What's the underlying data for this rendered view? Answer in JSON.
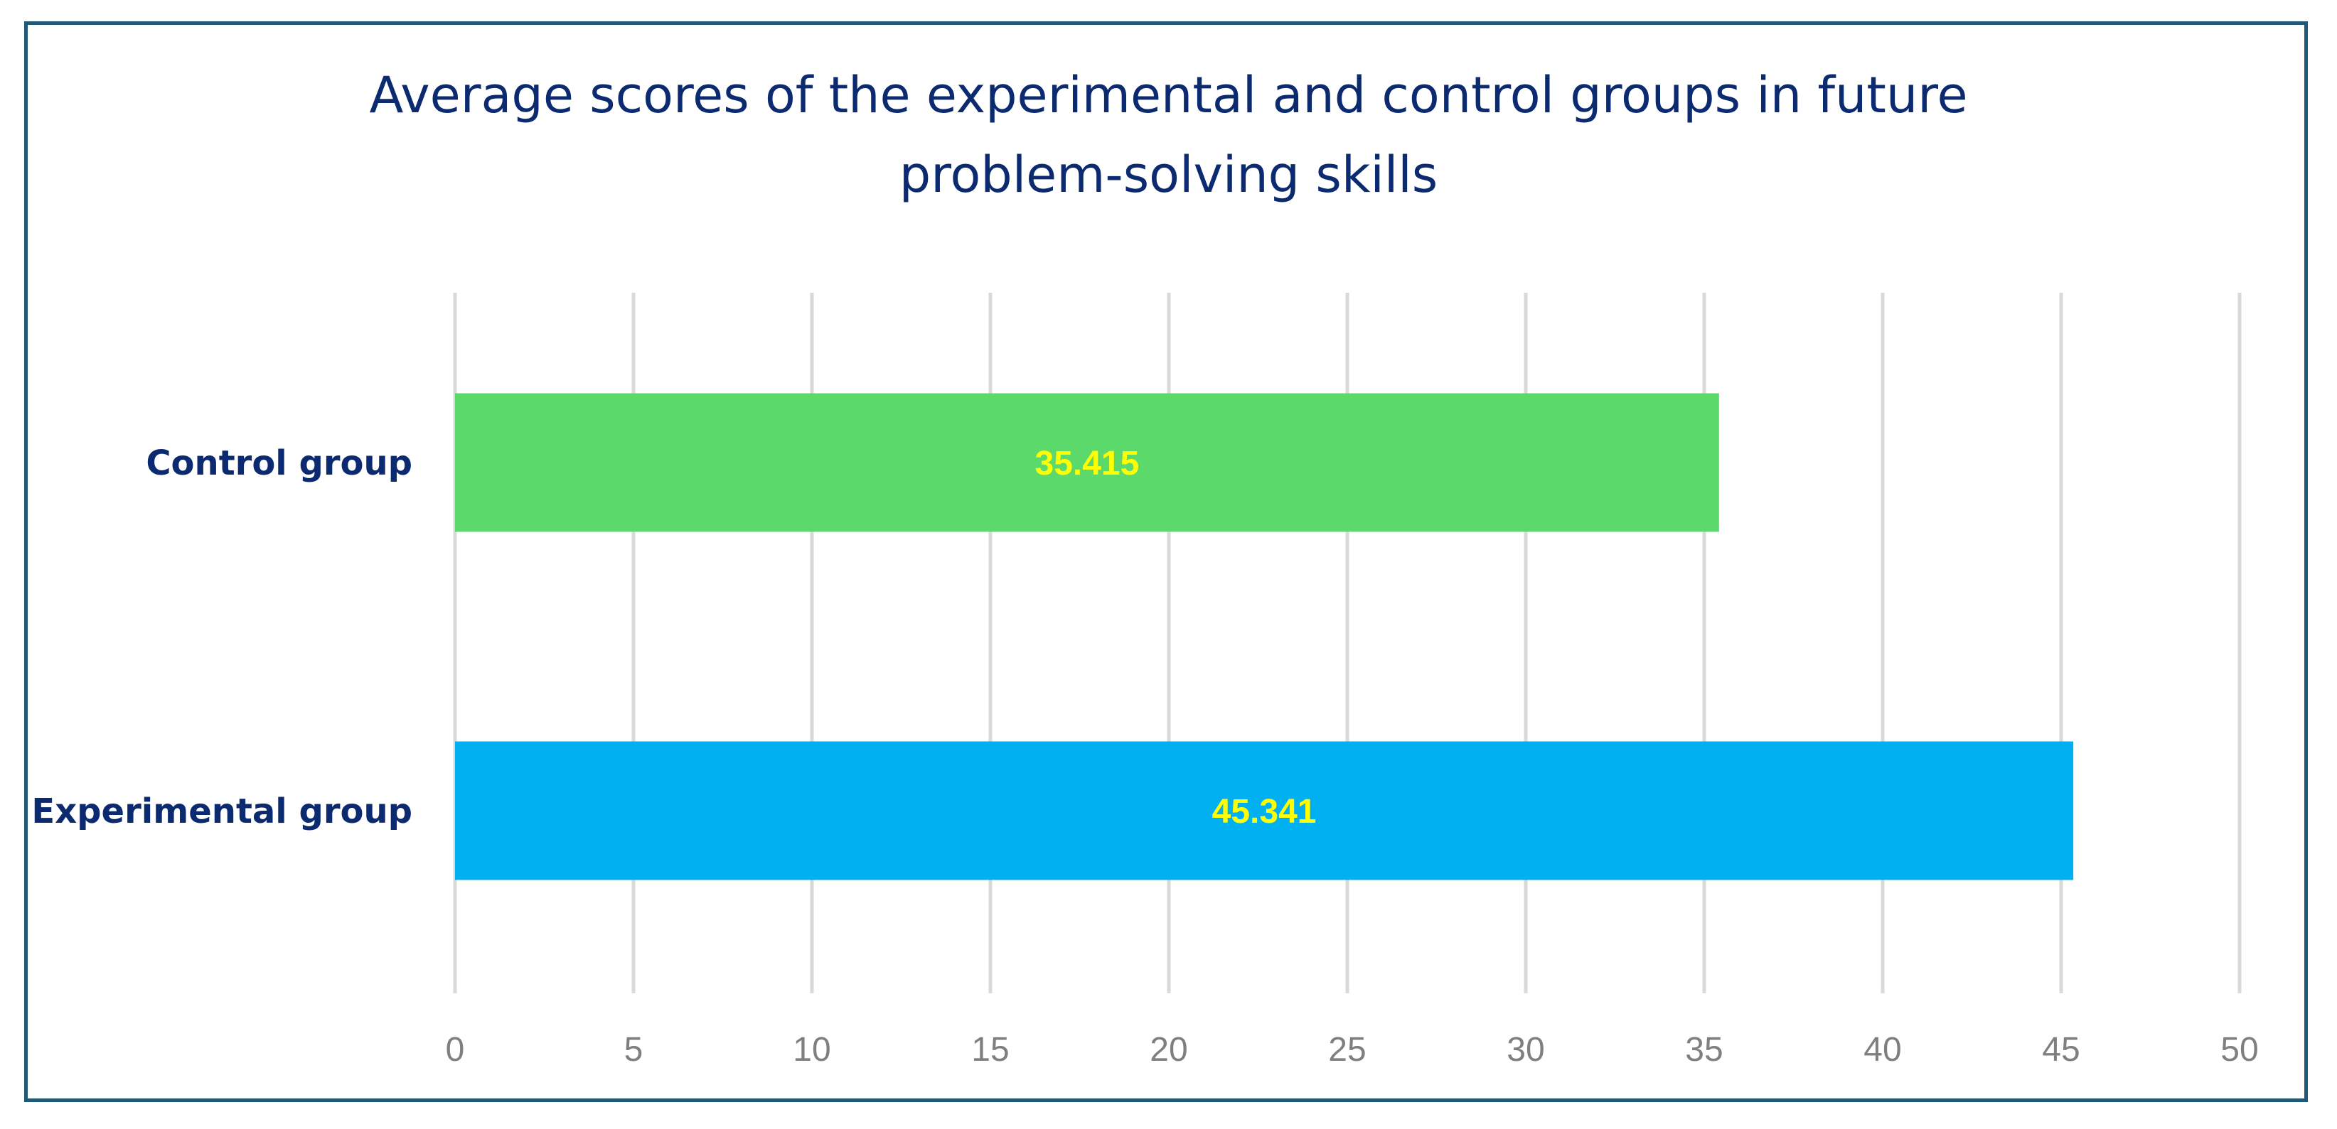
{
  "chart_data": {
    "type": "bar",
    "orientation": "horizontal",
    "title_lines": [
      "Average scores of the experimental and control groups in future",
      "problem-solving skills"
    ],
    "categories": [
      "Control group",
      "Experimental group"
    ],
    "values": [
      35.415,
      45.341
    ],
    "data_labels": [
      "35.415",
      "45.341"
    ],
    "xlim": [
      0,
      50
    ],
    "x_ticks": [
      0,
      5,
      10,
      15,
      20,
      25,
      30,
      35,
      40,
      45,
      50
    ],
    "x_tick_labels": [
      "0",
      "5",
      "10",
      "15",
      "20",
      "25",
      "30",
      "35",
      "40",
      "45",
      "50"
    ],
    "xlabel": "",
    "ylabel": "",
    "grid": true,
    "legend": "none"
  },
  "colors": {
    "bars": [
      "#5cd96b",
      "#00b0f0"
    ],
    "data_label": "#ffff00",
    "title": "#0b2a6f",
    "category_label": "#0b2a6f",
    "tick_label": "#7f7f7f",
    "gridline": "#d9d9d9",
    "frame": "#1f5a78"
  }
}
